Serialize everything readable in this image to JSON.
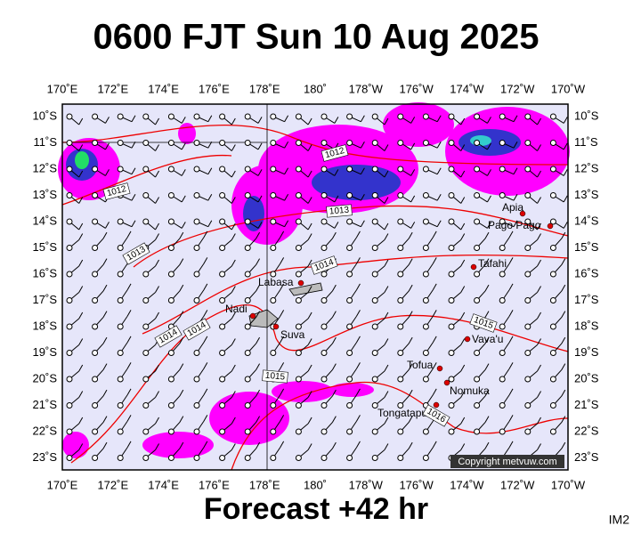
{
  "header": {
    "title": "0600 FJT Sun 10 Aug 2025"
  },
  "map": {
    "lon_labels": [
      "170˚E",
      "172˚E",
      "174˚E",
      "176˚E",
      "178˚E",
      "180˚",
      "178˚W",
      "176˚W",
      "174˚W",
      "172˚W",
      "170˚W"
    ],
    "lat_labels": [
      "10˚S",
      "11˚S",
      "12˚S",
      "13˚S",
      "14˚S",
      "15˚S",
      "16˚S",
      "17˚S",
      "18˚S",
      "19˚S",
      "20˚S",
      "21˚S",
      "22˚S",
      "23˚S"
    ],
    "places": [
      "Apia",
      "Pago Pago",
      "Tafahi",
      "Labasa",
      "Nadi",
      "Suva",
      "Vava'u",
      "Tofua",
      "Nomuka",
      "Tongatapu"
    ],
    "isobar_labels": [
      "1012",
      "1012",
      "1013",
      "1013",
      "1014",
      "1014",
      "1014",
      "1015",
      "1015",
      "1016"
    ],
    "credit": "Copyright metvuw.com"
  },
  "footer": {
    "forecast": "Forecast +42 hr",
    "corner": "IM2"
  }
}
